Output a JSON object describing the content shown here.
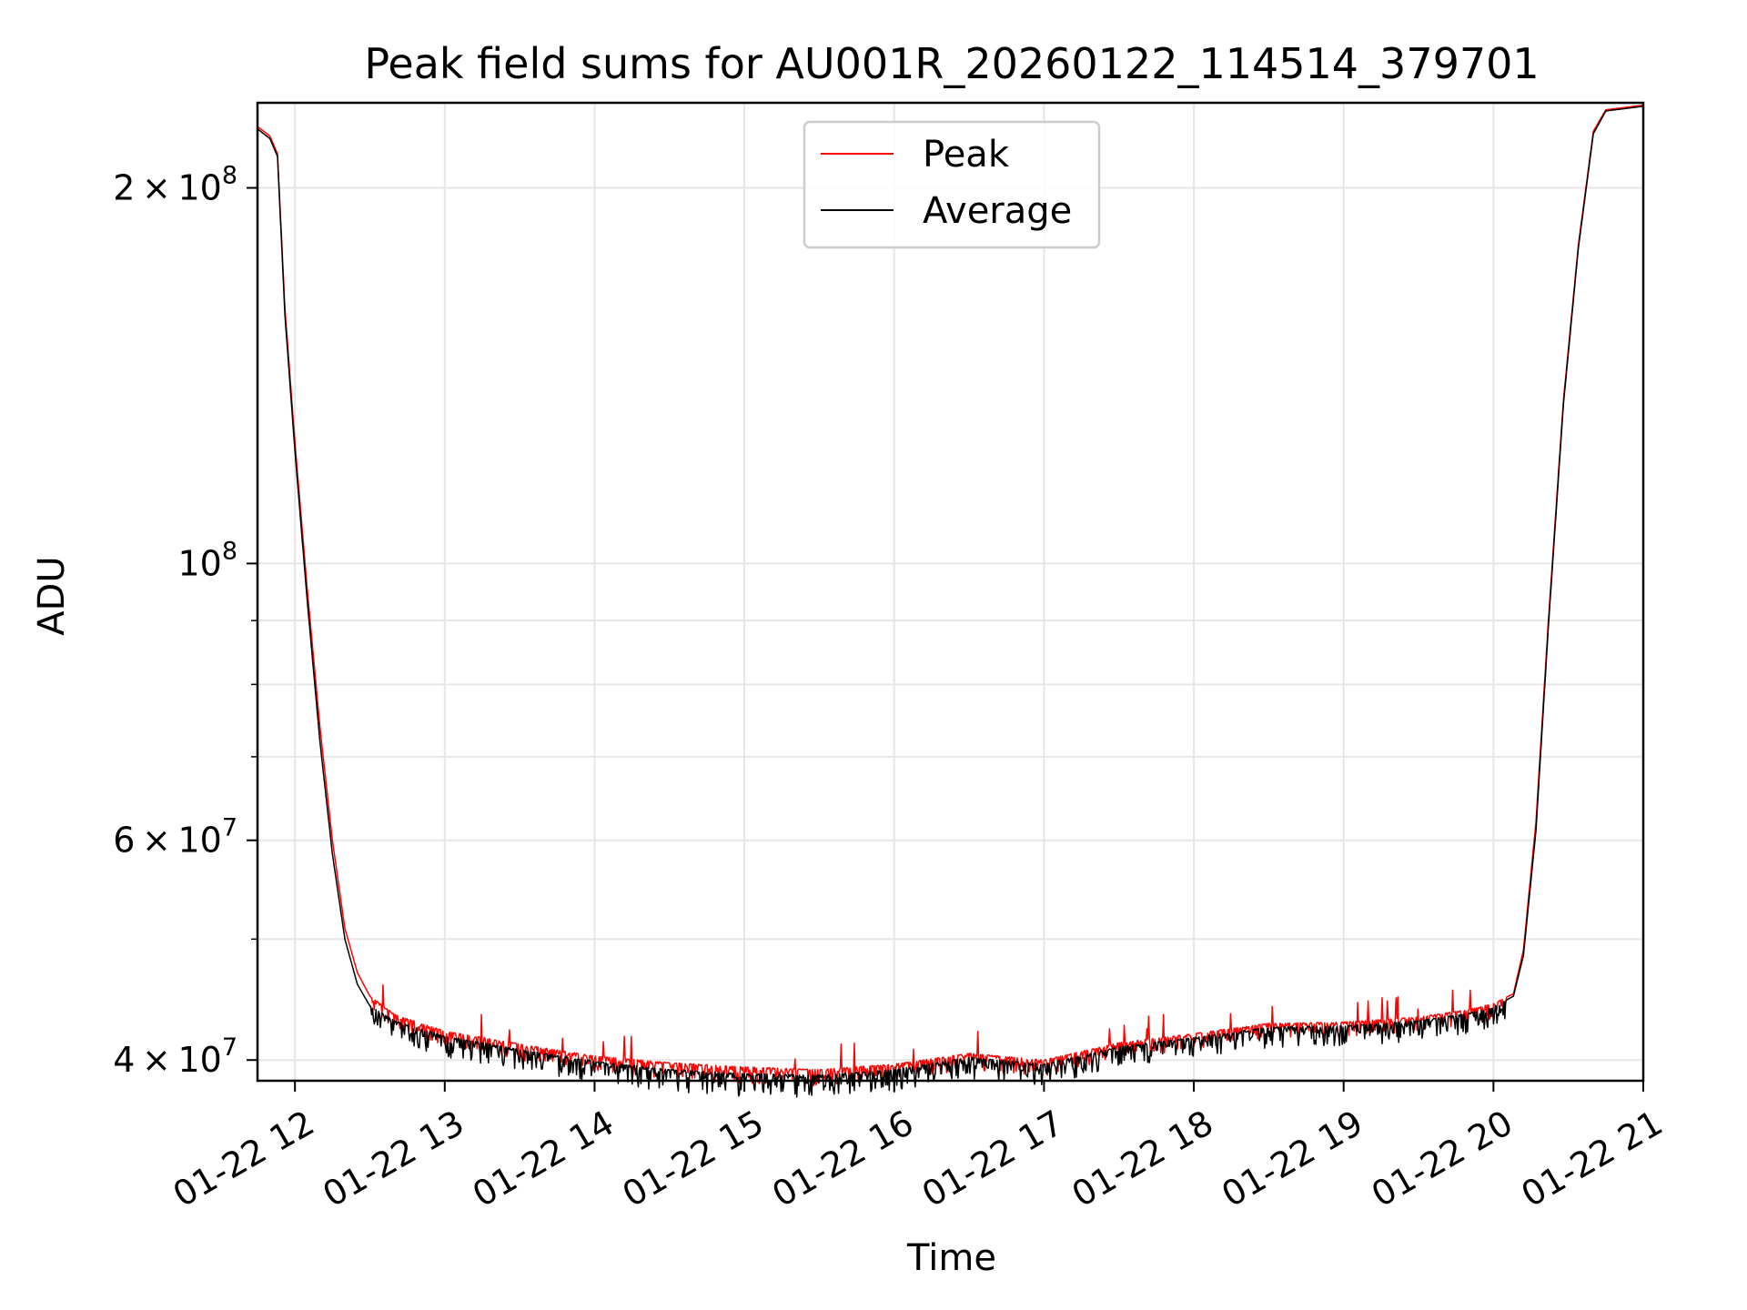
{
  "chart_data": {
    "type": "line",
    "title": "Peak field sums for AU001R_20260122_114514_379701",
    "xlabel": "Time",
    "ylabel": "ADU",
    "yscale": "log",
    "ylim": [
      38500000,
      234000000
    ],
    "xlim": [
      "2026-01-22 11:45",
      "2026-01-22 21:00"
    ],
    "x_ticks": [
      {
        "value": "2026-01-22 12:00",
        "label": "01-22 12"
      },
      {
        "value": "2026-01-22 13:00",
        "label": "01-22 13"
      },
      {
        "value": "2026-01-22 14:00",
        "label": "01-22 14"
      },
      {
        "value": "2026-01-22 15:00",
        "label": "01-22 15"
      },
      {
        "value": "2026-01-22 16:00",
        "label": "01-22 16"
      },
      {
        "value": "2026-01-22 17:00",
        "label": "01-22 17"
      },
      {
        "value": "2026-01-22 18:00",
        "label": "01-22 18"
      },
      {
        "value": "2026-01-22 19:00",
        "label": "01-22 19"
      },
      {
        "value": "2026-01-22 20:00",
        "label": "01-22 20"
      },
      {
        "value": "2026-01-22 21:00",
        "label": "01-22 21"
      }
    ],
    "y_major_ticks": [
      {
        "value": 40000000,
        "mantissa": "4",
        "exp": "7"
      },
      {
        "value": 60000000,
        "mantissa": "6",
        "exp": "7"
      },
      {
        "value": 100000000,
        "mantissa": "",
        "exp": "8"
      },
      {
        "value": 200000000,
        "mantissa": "2",
        "exp": "8"
      }
    ],
    "y_minor_ticks": [
      50000000,
      70000000,
      80000000,
      90000000
    ],
    "grid": true,
    "legend_position": "top-center",
    "series": [
      {
        "name": "Peak",
        "color": "#ff0000",
        "noise_amplitude": 1200000,
        "points": [
          [
            "2026-01-22 11:45",
            224000000
          ],
          [
            "2026-01-22 11:50",
            220000000
          ],
          [
            "2026-01-22 11:53",
            213000000
          ],
          [
            "2026-01-22 11:56",
            160000000
          ],
          [
            "2026-01-22 12:00",
            125000000
          ],
          [
            "2026-01-22 12:05",
            95000000
          ],
          [
            "2026-01-22 12:10",
            74000000
          ],
          [
            "2026-01-22 12:15",
            60000000
          ],
          [
            "2026-01-22 12:20",
            51000000
          ],
          [
            "2026-01-22 12:25",
            47000000
          ],
          [
            "2026-01-22 12:30",
            45000000
          ],
          [
            "2026-01-22 12:40",
            43500000
          ],
          [
            "2026-01-22 13:00",
            42200000
          ],
          [
            "2026-01-22 13:30",
            41200000
          ],
          [
            "2026-01-22 14:00",
            40300000
          ],
          [
            "2026-01-22 14:30",
            39800000
          ],
          [
            "2026-01-22 15:00",
            39500000
          ],
          [
            "2026-01-22 15:30",
            39300000
          ],
          [
            "2026-01-22 16:00",
            39700000
          ],
          [
            "2026-01-22 16:30",
            40500000
          ],
          [
            "2026-01-22 17:00",
            40000000
          ],
          [
            "2026-01-22 17:30",
            41300000
          ],
          [
            "2026-01-22 18:00",
            42000000
          ],
          [
            "2026-01-22 18:30",
            42800000
          ],
          [
            "2026-01-22 19:00",
            42900000
          ],
          [
            "2026-01-22 19:30",
            43300000
          ],
          [
            "2026-01-22 19:50",
            43900000
          ],
          [
            "2026-01-22 20:00",
            44400000
          ],
          [
            "2026-01-22 20:08",
            45200000
          ],
          [
            "2026-01-22 20:12",
            49000000
          ],
          [
            "2026-01-22 20:17",
            62000000
          ],
          [
            "2026-01-22 20:22",
            90000000
          ],
          [
            "2026-01-22 20:28",
            135000000
          ],
          [
            "2026-01-22 20:34",
            180000000
          ],
          [
            "2026-01-22 20:40",
            222000000
          ],
          [
            "2026-01-22 20:45",
            231000000
          ],
          [
            "2026-01-22 21:00",
            233000000
          ]
        ]
      },
      {
        "name": "Average",
        "color": "#000000",
        "noise_amplitude": 1600000,
        "points": [
          [
            "2026-01-22 11:45",
            223000000
          ],
          [
            "2026-01-22 11:50",
            219000000
          ],
          [
            "2026-01-22 11:53",
            212000000
          ],
          [
            "2026-01-22 11:56",
            158000000
          ],
          [
            "2026-01-22 12:00",
            123000000
          ],
          [
            "2026-01-22 12:05",
            93000000
          ],
          [
            "2026-01-22 12:10",
            72000000
          ],
          [
            "2026-01-22 12:15",
            58500000
          ],
          [
            "2026-01-22 12:20",
            50000000
          ],
          [
            "2026-01-22 12:25",
            46000000
          ],
          [
            "2026-01-22 12:30",
            44200000
          ],
          [
            "2026-01-22 12:40",
            43000000
          ],
          [
            "2026-01-22 13:00",
            41800000
          ],
          [
            "2026-01-22 13:30",
            40800000
          ],
          [
            "2026-01-22 14:00",
            39900000
          ],
          [
            "2026-01-22 14:30",
            39300000
          ],
          [
            "2026-01-22 15:00",
            39000000
          ],
          [
            "2026-01-22 15:30",
            38900000
          ],
          [
            "2026-01-22 16:00",
            39300000
          ],
          [
            "2026-01-22 16:30",
            40200000
          ],
          [
            "2026-01-22 17:00",
            39700000
          ],
          [
            "2026-01-22 17:30",
            41000000
          ],
          [
            "2026-01-22 18:00",
            41700000
          ],
          [
            "2026-01-22 18:30",
            42500000
          ],
          [
            "2026-01-22 19:00",
            42600000
          ],
          [
            "2026-01-22 19:30",
            43000000
          ],
          [
            "2026-01-22 19:50",
            43600000
          ],
          [
            "2026-01-22 20:00",
            44100000
          ],
          [
            "2026-01-22 20:08",
            45000000
          ],
          [
            "2026-01-22 20:12",
            48500000
          ],
          [
            "2026-01-22 20:17",
            61000000
          ],
          [
            "2026-01-22 20:22",
            89000000
          ],
          [
            "2026-01-22 20:28",
            134000000
          ],
          [
            "2026-01-22 20:34",
            179000000
          ],
          [
            "2026-01-22 20:40",
            221000000
          ],
          [
            "2026-01-22 20:45",
            230500000
          ],
          [
            "2026-01-22 21:00",
            232500000
          ]
        ]
      }
    ]
  }
}
